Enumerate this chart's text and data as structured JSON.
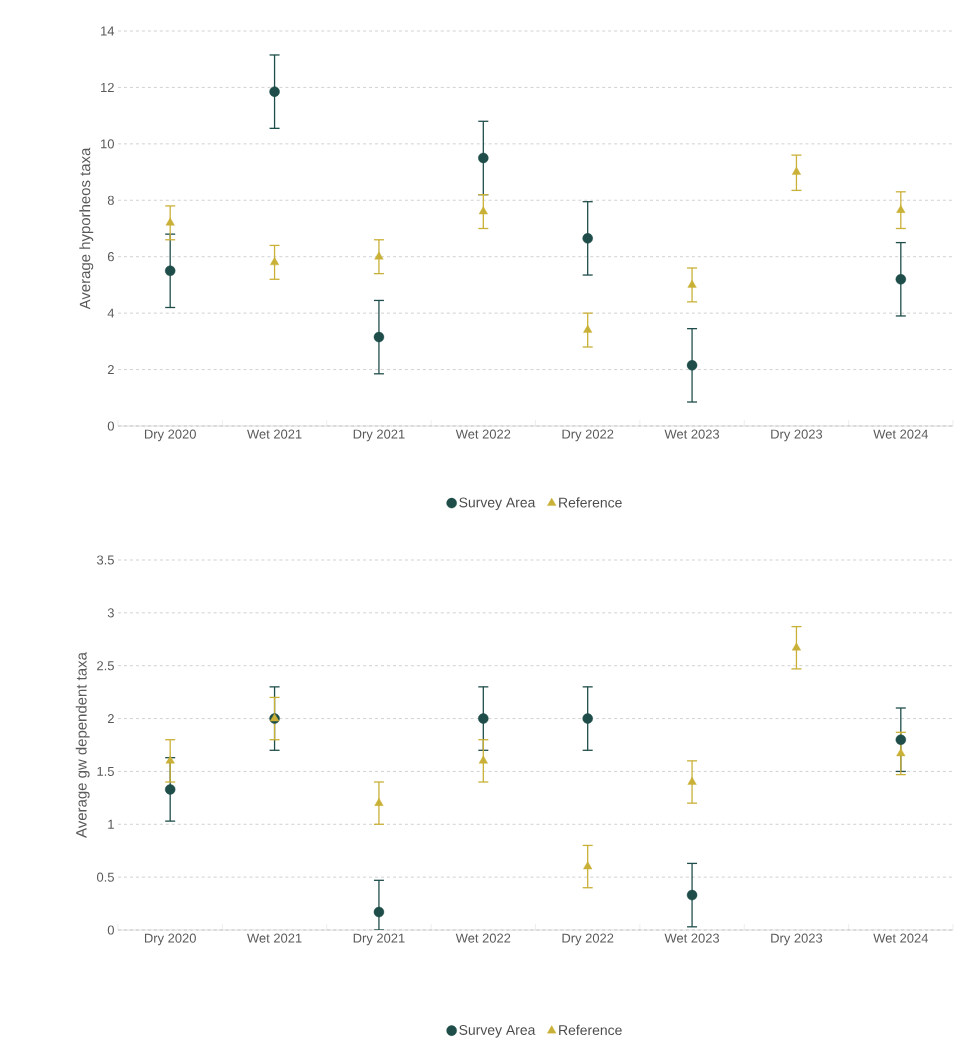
{
  "chart_data": [
    {
      "type": "scatter",
      "ylabel": "Average hyporheos taxa",
      "categories": [
        "Dry 2020",
        "Wet 2021",
        "Dry 2021",
        "Wet 2022",
        "Dry 2022",
        "Wet 2023",
        "Dry 2023",
        "Wet 2024"
      ],
      "series": [
        {
          "name": "Survey Area",
          "color": "#1f4e4a",
          "marker": "circle",
          "values": [
            5.5,
            11.85,
            3.15,
            9.5,
            6.65,
            2.15,
            null,
            5.2
          ],
          "errors": [
            [
              4.2,
              6.8
            ],
            [
              10.55,
              13.15
            ],
            [
              1.85,
              4.45
            ],
            [
              8.2,
              10.8
            ],
            [
              5.35,
              7.95
            ],
            [
              0.85,
              3.45
            ],
            null,
            [
              3.9,
              6.5
            ]
          ]
        },
        {
          "name": "Reference",
          "color": "#c9b037",
          "marker": "triangle",
          "values": [
            7.2,
            5.8,
            6.0,
            7.6,
            3.4,
            5.0,
            9.0,
            7.65
          ],
          "errors": [
            [
              6.6,
              7.8
            ],
            [
              5.2,
              6.4
            ],
            [
              5.4,
              6.6
            ],
            [
              7.0,
              8.2
            ],
            [
              2.8,
              4.0
            ],
            [
              4.4,
              5.6
            ],
            [
              8.35,
              9.6
            ],
            [
              7.0,
              8.3
            ]
          ]
        }
      ],
      "ylim": [
        0,
        14
      ],
      "yticks": [
        0,
        2,
        4,
        6,
        8,
        10,
        12,
        14
      ],
      "grid": "y",
      "legend": "bottom"
    },
    {
      "type": "scatter",
      "ylabel": "Average gw dependent taxa",
      "categories": [
        "Dry 2020",
        "Wet 2021",
        "Dry 2021",
        "Wet 2022",
        "Dry 2022",
        "Wet 2023",
        "Dry 2023",
        "Wet 2024"
      ],
      "series": [
        {
          "name": "Survey Area",
          "color": "#1f4e4a",
          "marker": "circle",
          "values": [
            1.33,
            2.0,
            0.17,
            2.0,
            2.0,
            0.33,
            null,
            1.8
          ],
          "errors": [
            [
              1.03,
              1.63
            ],
            [
              1.7,
              2.3
            ],
            [
              0,
              0.47
            ],
            [
              1.7,
              2.3
            ],
            [
              1.7,
              2.3
            ],
            [
              0.03,
              0.63
            ],
            null,
            [
              1.5,
              2.1
            ]
          ]
        },
        {
          "name": "Reference",
          "color": "#c9b037",
          "marker": "triangle",
          "values": [
            1.6,
            2.0,
            1.2,
            1.6,
            0.6,
            1.4,
            2.67,
            1.67
          ],
          "errors": [
            [
              1.4,
              1.8
            ],
            [
              1.8,
              2.2
            ],
            [
              1.0,
              1.4
            ],
            [
              1.4,
              1.8
            ],
            [
              0.4,
              0.8
            ],
            [
              1.2,
              1.6
            ],
            [
              2.47,
              2.87
            ],
            [
              1.47,
              1.87
            ]
          ]
        }
      ],
      "ylim": [
        0,
        3.5
      ],
      "yticks": [
        0,
        0.5,
        1,
        1.5,
        2,
        2.5,
        3,
        3.5
      ],
      "grid": "y",
      "legend": "bottom"
    }
  ]
}
